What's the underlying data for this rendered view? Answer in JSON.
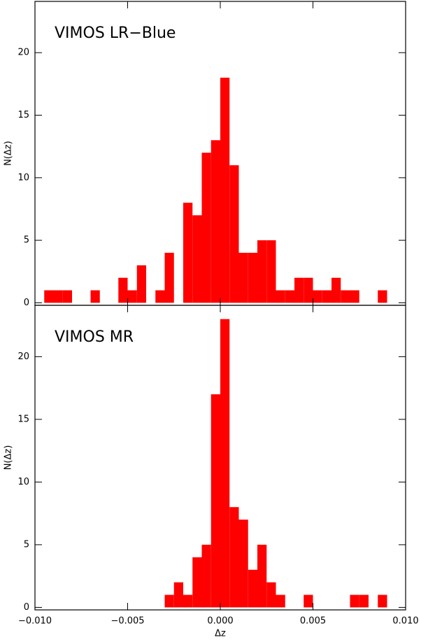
{
  "chart_data": [
    {
      "type": "histogram",
      "annotation": "VIMOS LR−Blue",
      "ylabel": "N(Δz)",
      "color": "#ff0000",
      "bins": [
        -0.0095,
        -0.009,
        -0.0085,
        -0.008,
        -0.0075,
        -0.007,
        -0.0065,
        -0.006,
        -0.0055,
        -0.005,
        -0.0045,
        -0.004,
        -0.0035,
        -0.003,
        -0.0025,
        -0.002,
        -0.0015,
        -0.001,
        -0.0005,
        0,
        0.0005,
        0.001,
        0.0015,
        0.002,
        0.0025,
        0.003,
        0.0035,
        0.004,
        0.0045,
        0.005,
        0.0055,
        0.006,
        0.0065,
        0.007,
        0.0075,
        0.008,
        0.0085,
        0.009
      ],
      "values": [
        1,
        1,
        1,
        0,
        0,
        1,
        0,
        0,
        2,
        1,
        3,
        0,
        1,
        4,
        0,
        8,
        7,
        12,
        13,
        18,
        11,
        4,
        4,
        5,
        5,
        1,
        1,
        2,
        2,
        1,
        1,
        2,
        1,
        1,
        0,
        0,
        1
      ],
      "xlim": [
        -0.01,
        0.01
      ],
      "ylim": [
        -0.2,
        24.1
      ],
      "yticks": [
        0,
        5,
        10,
        15,
        20
      ]
    },
    {
      "type": "histogram",
      "annotation": "VIMOS MR",
      "ylabel": "N(Δz)",
      "xlabel": "Δz",
      "color": "#ff0000",
      "bins": [
        -0.0095,
        -0.009,
        -0.0085,
        -0.008,
        -0.0075,
        -0.007,
        -0.0065,
        -0.006,
        -0.0055,
        -0.005,
        -0.0045,
        -0.004,
        -0.0035,
        -0.003,
        -0.0025,
        -0.002,
        -0.0015,
        -0.001,
        -0.0005,
        0,
        0.0005,
        0.001,
        0.0015,
        0.002,
        0.0025,
        0.003,
        0.0035,
        0.004,
        0.0045,
        0.005,
        0.0055,
        0.006,
        0.0065,
        0.007,
        0.0075,
        0.008,
        0.0085,
        0.009
      ],
      "values": [
        0,
        0,
        0,
        0,
        0,
        0,
        0,
        0,
        0,
        0,
        0,
        0,
        0,
        1,
        2,
        1,
        4,
        5,
        17,
        23,
        8,
        7,
        3,
        5,
        2,
        1,
        0,
        0,
        1,
        0,
        0,
        0,
        0,
        1,
        1,
        0,
        1
      ],
      "xlim": [
        -0.01,
        0.01
      ],
      "ylim": [
        -0.2,
        24.1
      ],
      "yticks": [
        0,
        5,
        10,
        15,
        20
      ],
      "xticks": [
        {
          "value": -0.01,
          "label": "−0.010"
        },
        {
          "value": -0.005,
          "label": "−0.005"
        },
        {
          "value": 0,
          "label": "0.000"
        },
        {
          "value": 0.005,
          "label": "0.005"
        },
        {
          "value": 0.01,
          "label": "0.010"
        }
      ]
    }
  ]
}
